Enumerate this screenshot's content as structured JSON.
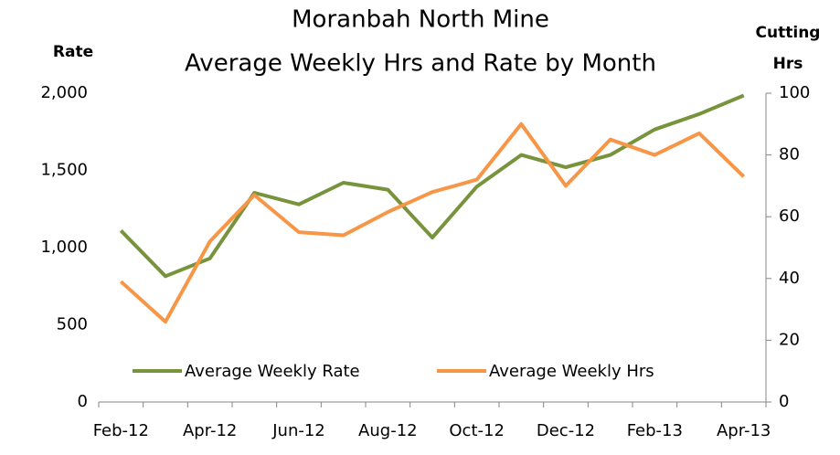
{
  "chart_data": {
    "type": "line",
    "title": "Moranbah North Mine",
    "subtitle": "Average Weekly Hrs and Rate by Month",
    "y_label": "Rate",
    "y2_label": "Cutting Hrs",
    "categories": [
      "Feb-12",
      null,
      "Apr-12",
      null,
      "Jun-12",
      null,
      "Aug-12",
      null,
      "Oct-12",
      null,
      "Dec-12",
      null,
      "Feb-13",
      null,
      "Apr-13"
    ],
    "series": [
      {
        "name": "Average Weekly Rate",
        "color": "#77933c",
        "values": [
          1110,
          815,
          930,
          1355,
          1280,
          1420,
          1375,
          1065,
          1395,
          1600,
          1520,
          1600,
          1765,
          1865,
          1985
        ]
      },
      {
        "name": "Average Weekly Hrs",
        "color": "#f79646",
        "axis": "y2",
        "values": [
          39,
          26,
          52,
          67,
          55,
          54,
          61.5,
          68,
          72,
          90,
          70,
          85,
          80,
          87,
          73
        ]
      }
    ],
    "ylim": [
      0,
      2000
    ],
    "yticks": [
      0,
      500,
      {
        "value": 1000,
        "label": "1,000"
      },
      {
        "value": 1500,
        "label": "1,500"
      },
      {
        "value": 2000,
        "label": "2,000"
      }
    ],
    "y2lim": [
      0,
      100
    ],
    "y2ticks": [
      0,
      20,
      40,
      60,
      80,
      100
    ],
    "grid": false,
    "legend": "bottom"
  }
}
